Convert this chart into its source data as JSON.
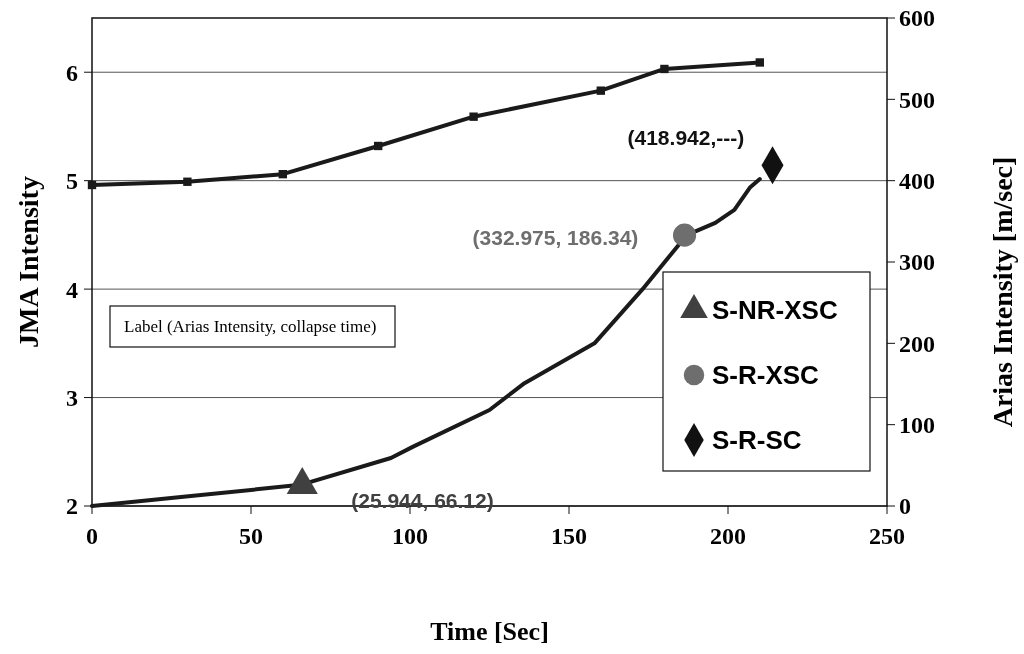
{
  "chart_data": {
    "type": "line",
    "xlabel": "Time [Sec]",
    "ylabel": "JMA Intensity",
    "y2label": "Arias Intensity [m/sec]",
    "xlim": [
      0,
      250
    ],
    "xticks": [
      0,
      50,
      100,
      150,
      200,
      250
    ],
    "ylim": [
      2,
      6.5
    ],
    "yticks": [
      2,
      3,
      4,
      5,
      6
    ],
    "y2lim": [
      0,
      600
    ],
    "y2ticks": [
      0,
      100,
      200,
      300,
      400,
      500,
      600
    ],
    "grid": "y",
    "legend": "right",
    "annotations": [
      "Label (Arias Intensity, collapse time)",
      "(25.944, 66.12)",
      "(332.975, 186.34)",
      "(418.942,---)"
    ],
    "series": [
      {
        "color": "#1a1a1a",
        "marker": "square",
        "x": [
          0,
          30,
          60,
          90,
          120,
          160,
          180,
          210
        ],
        "values": [
          4.96,
          4.99,
          5.06,
          5.32,
          5.59,
          5.83,
          6.03,
          6.09
        ]
      },
      {
        "axis": "y2",
        "color": "#1a1a1a",
        "marker": "none",
        "x": [
          0,
          28,
          65.6,
          94,
          101,
          125,
          136,
          158,
          173,
          187,
          196,
          202,
          207,
          210
        ],
        "values": [
          0,
          11,
          26,
          59,
          73,
          118,
          151,
          200,
          266,
          333,
          348,
          364,
          392,
          402
        ]
      },
      {
        "type": "scatter",
        "axis": "y2",
        "name": "S-NR-XSC",
        "color": "#404040",
        "marker": "triangle",
        "x": [
          66.12
        ],
        "values": [
          25.944
        ]
      },
      {
        "type": "scatter",
        "axis": "y2",
        "name": "S-R-XSC",
        "color": "#6e6e6e",
        "marker": "circle",
        "x": [
          186.34
        ],
        "values": [
          332.975
        ]
      },
      {
        "type": "scatter",
        "axis": "y2",
        "name": "S-R-SC",
        "color": "#111111",
        "marker": "diamond",
        "x": [
          214
        ],
        "values": [
          418.942
        ]
      }
    ]
  }
}
